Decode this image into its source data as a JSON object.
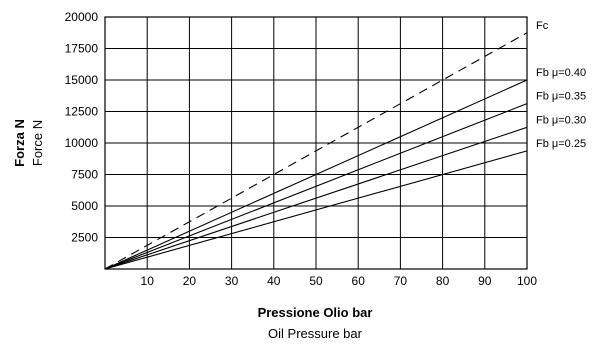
{
  "chart_data": {
    "type": "line",
    "xlabel": "Pressione Olio  bar",
    "xlabel_secondary": "Oil Pressure  bar",
    "ylabel": "Forza  N",
    "ylabel_secondary": "Force  N",
    "xlim": [
      0,
      100
    ],
    "ylim": [
      0,
      20000
    ],
    "xticks": [
      10,
      20,
      30,
      40,
      50,
      60,
      70,
      80,
      90,
      100
    ],
    "yticks": [
      2500,
      5000,
      7500,
      10000,
      12500,
      15000,
      17500,
      20000
    ],
    "grid": true,
    "legend": "labels at right end of lines",
    "series": [
      {
        "name": "Fc",
        "style": "dashed",
        "x": [
          0,
          100
        ],
        "y": [
          0,
          18750
        ]
      },
      {
        "name": "Fb μ=0.40",
        "style": "solid",
        "x": [
          0,
          100
        ],
        "y": [
          0,
          15000
        ]
      },
      {
        "name": "Fb μ=0.35",
        "style": "solid",
        "x": [
          0,
          100
        ],
        "y": [
          0,
          13125
        ]
      },
      {
        "name": "Fb μ=0.30",
        "style": "solid",
        "x": [
          0,
          100
        ],
        "y": [
          0,
          11250
        ]
      },
      {
        "name": "Fb μ=0.25",
        "style": "solid",
        "x": [
          0,
          100
        ],
        "y": [
          0,
          9375
        ]
      }
    ],
    "colors": {
      "line": "#000000",
      "grid": "#000000",
      "background": "#ffffff"
    }
  }
}
